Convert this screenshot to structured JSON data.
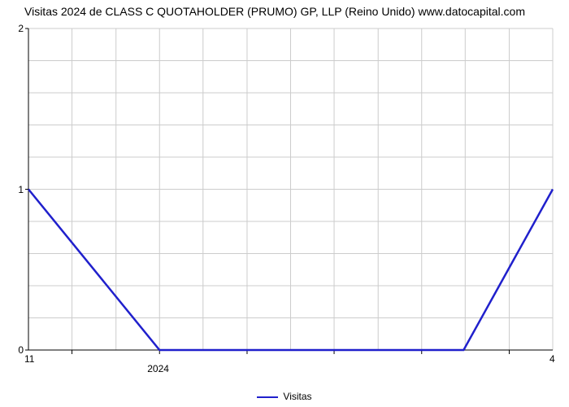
{
  "title": "Visitas 2024 de CLASS C QUOTAHOLDER (PRUMO) GP, LLP (Reino Unido) www.datocapital.com",
  "chart": {
    "type": "line",
    "background_color": "#ffffff",
    "grid_color": "#cccccc",
    "grid_line_width": 1,
    "axis_color": "#000000",
    "line_color": "#2020cc",
    "line_width": 2.5,
    "ylim": [
      0,
      2
    ],
    "yticks": [
      0,
      1,
      2
    ],
    "y_minor_count": 4,
    "x_moves": [
      0,
      0.25,
      0.83,
      1.0
    ],
    "x_minor_gridlines": [
      0,
      0.083,
      0.167,
      0.25,
      0.333,
      0.417,
      0.5,
      0.583,
      0.667,
      0.75,
      0.833,
      0.917,
      1.0
    ],
    "x_major_ticks": [
      0.083,
      0.25,
      0.417,
      0.583,
      0.75,
      0.917
    ],
    "data_points": [
      {
        "x": 0.0,
        "y": 1.0
      },
      {
        "x": 0.25,
        "y": 0.0
      },
      {
        "x": 0.83,
        "y": 0.0
      },
      {
        "x": 1.0,
        "y": 1.0
      }
    ],
    "x_left_label": "11",
    "x_right_label": "4",
    "x_tick_label_2024": "2024",
    "x_tick_label_2024_pos": 0.25,
    "title_fontsize": 14,
    "label_fontsize": 12
  },
  "legend": {
    "label": "Visitas",
    "color": "#2020cc"
  }
}
